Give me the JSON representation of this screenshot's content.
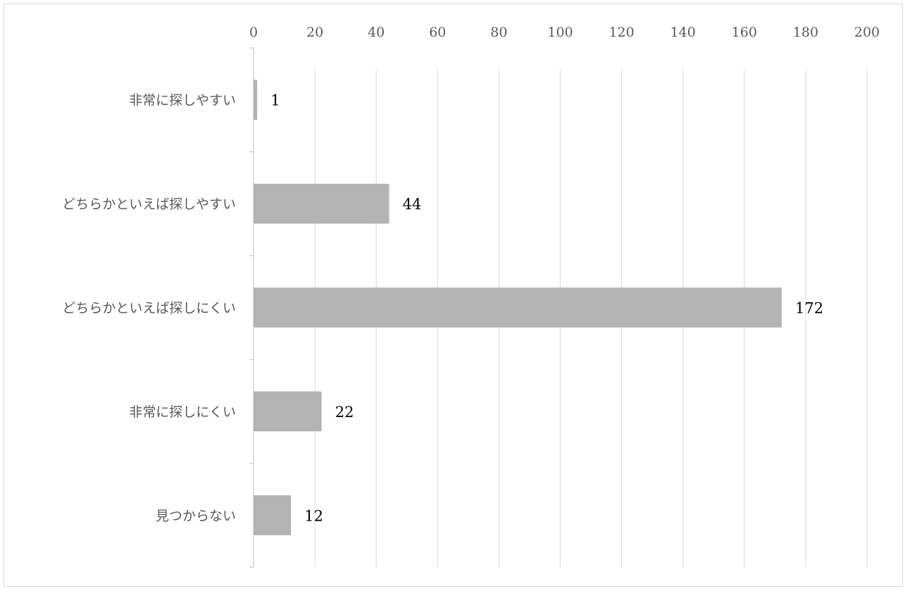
{
  "chart_data": {
    "type": "bar",
    "orientation": "horizontal",
    "categories": [
      "非常に探しやすい",
      "どちらかといえば探しやすい",
      "どちらかといえば探しにくい",
      "非常に探しにくい",
      "見つからない"
    ],
    "values": [
      1,
      44,
      172,
      22,
      12
    ],
    "data_labels": [
      "1",
      "44",
      "172",
      "22",
      "12"
    ],
    "xlim": [
      0,
      200
    ],
    "x_ticks": [
      0,
      20,
      40,
      60,
      80,
      100,
      120,
      140,
      160,
      180,
      200
    ],
    "x_tick_labels": [
      "0",
      "20",
      "40",
      "60",
      "80",
      "100",
      "120",
      "140",
      "160",
      "180",
      "200"
    ],
    "x_axis_position": "top",
    "grid": true,
    "legend": false,
    "title": "",
    "xlabel": "",
    "ylabel": "",
    "colors": {
      "bar": "#b4b4b4",
      "bar_edge": "#a6a6a6",
      "grid": "#d9d9d9",
      "axis": "#bfbfbf",
      "tick_text": "#595959",
      "data_text": "#000000"
    }
  }
}
